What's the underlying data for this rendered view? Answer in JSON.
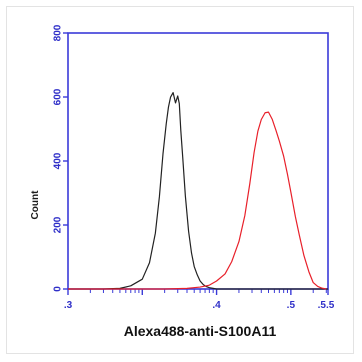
{
  "chart_data": {
    "type": "line",
    "title": "",
    "xlabel": "Alexa488-anti-S100A11",
    "ylabel": "Count",
    "x_scale": "log",
    "xlim": [
      1000,
      3162278
    ],
    "ylim": [
      0,
      800
    ],
    "x_tick_labels": [
      ".3",
      ".4",
      ".5",
      ".5.5"
    ],
    "y_ticks": [
      0,
      200,
      400,
      600,
      800
    ],
    "grid": false,
    "legend": "none",
    "colors": {
      "axis": "#3a3ad8",
      "text": "#2f2fc8",
      "control": "#222222",
      "stained": "#e8202a"
    },
    "series": [
      {
        "color": "#222222",
        "x": [
          1000,
          3000,
          5000,
          7000,
          10000,
          12500,
          15000,
          17000,
          19000,
          21000,
          22500,
          24000,
          26000,
          28000,
          30000,
          31500,
          33000,
          35000,
          38000,
          42000,
          46000,
          50000,
          55000,
          60000,
          66000,
          72000,
          80000,
          90000,
          100000,
          120000,
          140000,
          170000,
          200000,
          3162278
        ],
        "y": [
          0,
          0,
          2,
          10,
          40,
          90,
          180,
          290,
          420,
          510,
          560,
          590,
          605,
          575,
          600,
          580,
          500,
          420,
          300,
          190,
          120,
          75,
          45,
          25,
          14,
          8,
          4,
          2,
          0,
          0,
          0,
          0,
          0,
          0
        ]
      },
      {
        "color": "#e8202a",
        "x": [
          1000,
          20000,
          40000,
          60000,
          80000,
          100000,
          130000,
          160000,
          200000,
          240000,
          280000,
          320000,
          360000,
          400000,
          450000,
          500000,
          560000,
          630000,
          700000,
          800000,
          900000,
          1000000,
          1150000,
          1300000,
          1500000,
          1750000,
          2000000,
          2300000,
          2600000,
          3000000
        ],
        "y": [
          0,
          0,
          2,
          6,
          12,
          25,
          45,
          80,
          140,
          220,
          320,
          420,
          490,
          530,
          555,
          560,
          540,
          505,
          470,
          420,
          360,
          300,
          220,
          160,
          95,
          45,
          20,
          8,
          3,
          0
        ]
      }
    ]
  }
}
